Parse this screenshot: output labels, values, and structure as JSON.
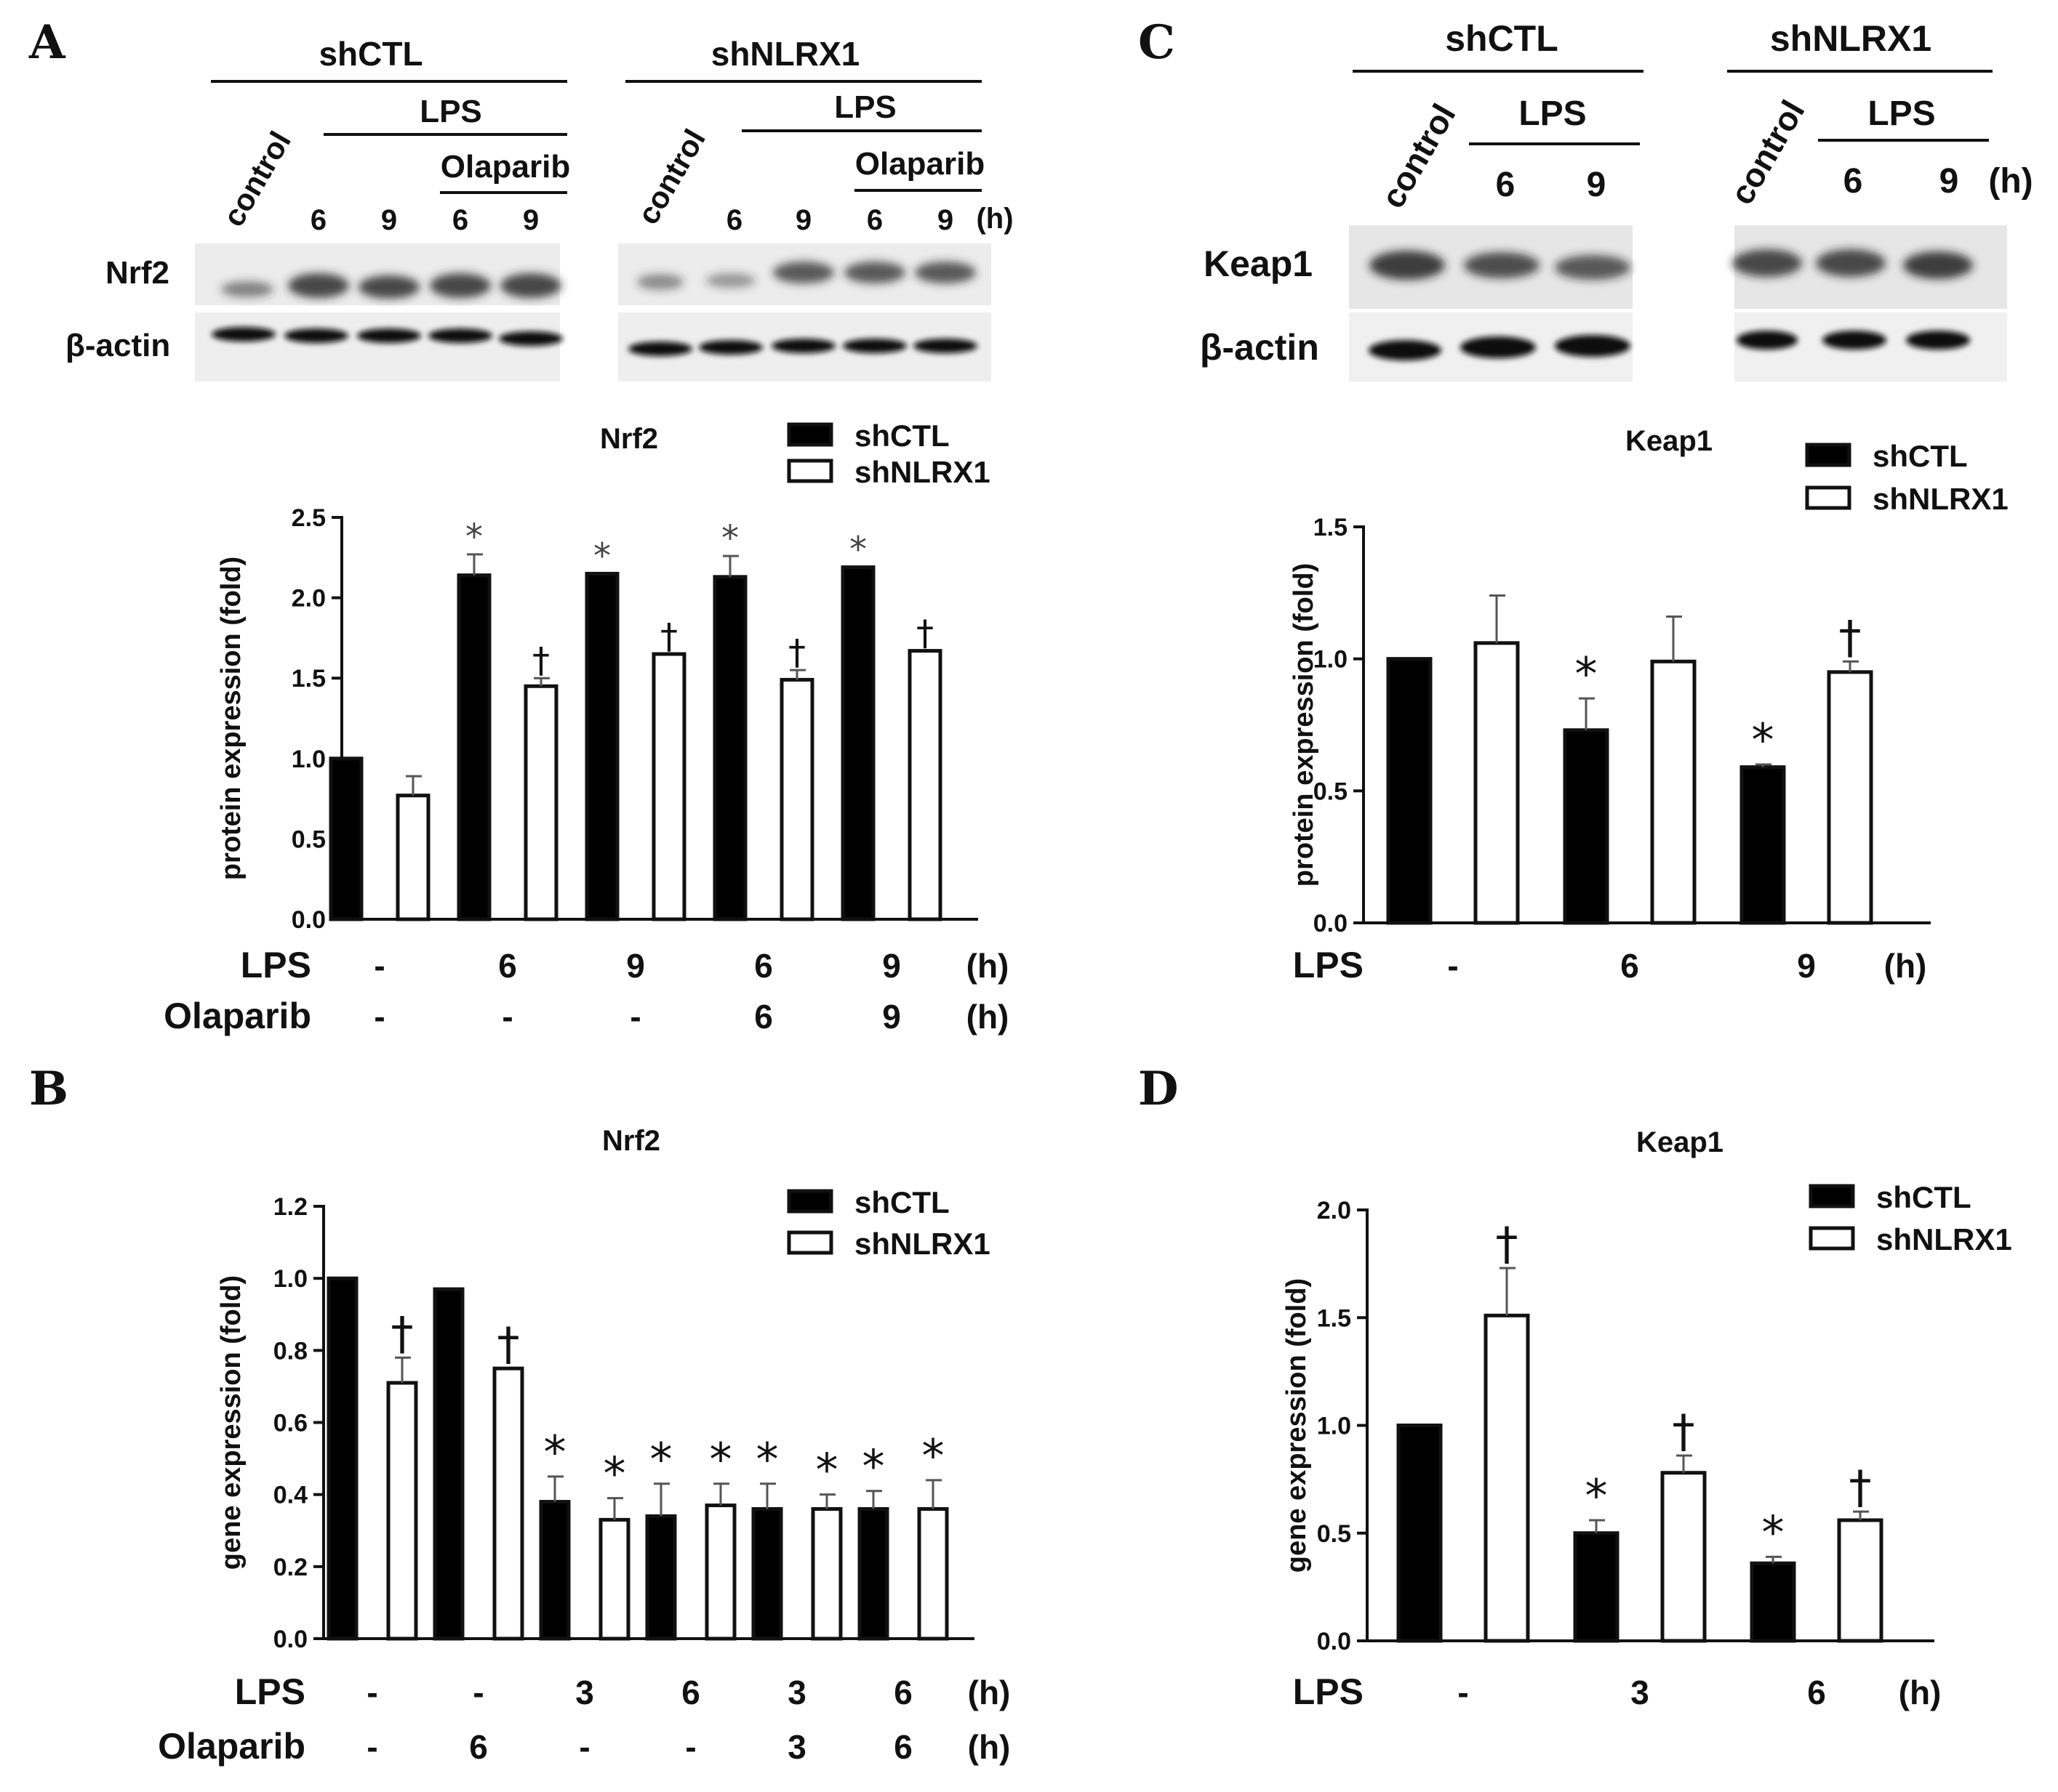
{
  "panels": {
    "A": {
      "letter": "A",
      "blot": {
        "group1": "shCTL",
        "group2": "shNLRX1",
        "control": "control",
        "lps": "LPS",
        "olaparib": "Olaparib",
        "lane_times_g1": [
          "6",
          "9",
          "6",
          "9"
        ],
        "lane_times_g2": [
          "6",
          "9",
          "6",
          "9"
        ],
        "hours": "(h)",
        "row1": "Nrf2",
        "row2": "β-actin"
      },
      "row_labels": [
        "LPS",
        "Olaparib"
      ],
      "cond_rows": [
        [
          "-",
          "6",
          "9",
          "6",
          "9"
        ],
        [
          "-",
          "-",
          "-",
          "6",
          "9"
        ]
      ],
      "hours": "(h)"
    },
    "B": {
      "letter": "B",
      "row_labels": [
        "LPS",
        "Olaparib"
      ],
      "cond_rows": [
        [
          "-",
          "-",
          "3",
          "6",
          "3",
          "6"
        ],
        [
          "-",
          "6",
          "-",
          "-",
          "3",
          "6"
        ]
      ],
      "hours": "(h)"
    },
    "C": {
      "letter": "C",
      "blot": {
        "group1": "shCTL",
        "group2": "shNLRX1",
        "control": "control",
        "lps": "LPS",
        "lane_times_g1": [
          "6",
          "9"
        ],
        "lane_times_g2": [
          "6",
          "9"
        ],
        "hours": "(h)",
        "row1": "Keap1",
        "row2": "β-actin"
      },
      "row_labels": [
        "LPS"
      ],
      "cond_rows": [
        [
          "-",
          "6",
          "9"
        ]
      ],
      "hours": "(h)"
    },
    "D": {
      "letter": "D",
      "row_labels": [
        "LPS"
      ],
      "cond_rows": [
        [
          "-",
          "3",
          "6"
        ]
      ],
      "hours": "(h)"
    }
  },
  "colors": {
    "bar_fill_shCTL": "#000000",
    "bar_fill_shNLRX1": "#ffffff",
    "ink": "#111111"
  },
  "chart_data": [
    {
      "id": "A",
      "type": "bar",
      "title": "Nrf2",
      "ylabel": "protein expression (fold)",
      "ylim": [
        0,
        2.5
      ],
      "yticks": [
        "0.0",
        "0.5",
        "1.0",
        "1.5",
        "2.0",
        "2.5"
      ],
      "legend_position": "top-right",
      "categories": [
        "-/-",
        "6/-",
        "9/-",
        "6/6",
        "9/9"
      ],
      "series": [
        {
          "name": "shCTL",
          "values": [
            1.0,
            2.14,
            2.15,
            2.13,
            2.19
          ],
          "errors": [
            0,
            0.13,
            0,
            0.13,
            0
          ],
          "marks": [
            "",
            "*",
            "*",
            "*",
            "*"
          ]
        },
        {
          "name": "shNLRX1",
          "values": [
            0.77,
            1.45,
            1.65,
            1.49,
            1.67
          ],
          "errors": [
            0.12,
            0.05,
            0,
            0.06,
            0
          ],
          "marks": [
            "",
            "†",
            "†",
            "†",
            "†"
          ]
        }
      ]
    },
    {
      "id": "B",
      "type": "bar",
      "title": "Nrf2",
      "ylabel": "gene expression (fold)",
      "ylim": [
        0,
        1.2
      ],
      "yticks": [
        "0.0",
        "0.2",
        "0.4",
        "0.6",
        "0.8",
        "1.0",
        "1.2"
      ],
      "legend_position": "top-right",
      "categories": [
        "-/-",
        "-/6",
        "3/-",
        "6/-",
        "3/3",
        "6/6"
      ],
      "series": [
        {
          "name": "shCTL",
          "values": [
            1.0,
            0.97,
            0.38,
            0.34,
            0.36,
            0.36
          ],
          "errors": [
            0,
            0,
            0.07,
            0.09,
            0.07,
            0.05
          ],
          "marks": [
            "",
            "",
            "*",
            "*",
            "*",
            "*"
          ]
        },
        {
          "name": "shNLRX1",
          "values": [
            0.71,
            0.75,
            0.33,
            0.37,
            0.36,
            0.36
          ],
          "errors": [
            0.07,
            0,
            0.06,
            0.06,
            0.04,
            0.08
          ],
          "marks": [
            "†",
            "†",
            "*",
            "*",
            "*",
            "*"
          ]
        }
      ]
    },
    {
      "id": "C",
      "type": "bar",
      "title": "Keap1",
      "ylabel": "protein expression (fold)",
      "ylim": [
        0,
        1.5
      ],
      "yticks": [
        "0.0",
        "0.5",
        "1.0",
        "1.5"
      ],
      "legend_position": "top-right",
      "categories": [
        "-",
        "6",
        "9"
      ],
      "series": [
        {
          "name": "shCTL",
          "values": [
            1.0,
            0.73,
            0.59
          ],
          "errors": [
            0,
            0.12,
            0.01
          ],
          "marks": [
            "",
            "*",
            "*"
          ]
        },
        {
          "name": "shNLRX1",
          "values": [
            1.06,
            0.99,
            0.95
          ],
          "errors": [
            0.18,
            0.17,
            0.04
          ],
          "marks": [
            "",
            "",
            "†"
          ]
        }
      ]
    },
    {
      "id": "D",
      "type": "bar",
      "title": "Keap1",
      "ylabel": "gene expression (fold)",
      "ylim": [
        0,
        2.0
      ],
      "yticks": [
        "0.0",
        "0.5",
        "1.0",
        "1.5",
        "2.0"
      ],
      "legend_position": "top-right",
      "categories": [
        "-",
        "3",
        "6"
      ],
      "series": [
        {
          "name": "shCTL",
          "values": [
            1.0,
            0.5,
            0.36
          ],
          "errors": [
            0,
            0.06,
            0.03
          ],
          "marks": [
            "",
            "*",
            "*"
          ]
        },
        {
          "name": "shNLRX1",
          "values": [
            1.51,
            0.78,
            0.56
          ],
          "errors": [
            0.22,
            0.08,
            0.04
          ],
          "marks": [
            "†",
            "†",
            "†"
          ]
        }
      ]
    }
  ]
}
